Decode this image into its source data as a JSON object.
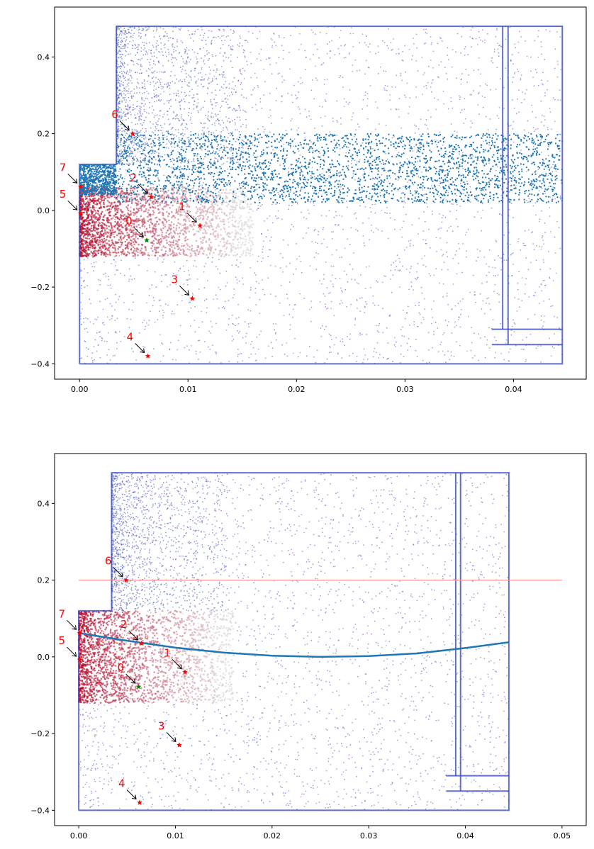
{
  "chart_data": [
    {
      "type": "scatter",
      "title": "",
      "xlabel": "",
      "ylabel": "",
      "xlim": [
        -0.0023,
        0.0467
      ],
      "ylim": [
        -0.44,
        0.53
      ],
      "xticks": [
        0.0,
        0.01,
        0.02,
        0.03,
        0.04
      ],
      "xtick_labels": [
        "0.00",
        "0.01",
        "0.02",
        "0.03",
        "0.04"
      ],
      "yticks": [
        -0.4,
        -0.2,
        0.0,
        0.2,
        0.4
      ],
      "ytick_labels": [
        "−0.4",
        "−0.2",
        "0.0",
        "0.2",
        "0.4"
      ],
      "grid": false,
      "colormap": "coolwarm",
      "domain_outline": {
        "xmin": 0.0,
        "xmax": 0.0445,
        "ymin": -0.4,
        "ymax": 0.48,
        "step_x": 0.0034,
        "step_y": 0.12,
        "vertical_lines_x": [
          0.039,
          0.0395
        ],
        "bottom_bands_y": [
          -0.31,
          -0.35
        ]
      },
      "blue_band": {
        "segments": [
          {
            "x": [
              0.0,
              0.0034
            ],
            "y": [
              0.04,
              0.12
            ]
          },
          {
            "x": [
              0.0034,
              0.0445
            ],
            "y": [
              0.02,
              0.2
            ]
          }
        ],
        "color": "#1f77b4"
      },
      "red_region": {
        "x": [
          0.0,
          0.016
        ],
        "y": [
          -0.12,
          0.06
        ]
      },
      "markers": [
        {
          "label": "1",
          "x": 0.0111,
          "y": -0.04,
          "color": "#ff0000"
        },
        {
          "label": "2",
          "x": 0.0066,
          "y": 0.035,
          "color": "#ff0000"
        },
        {
          "label": "3",
          "x": 0.0104,
          "y": -0.23,
          "color": "#ff0000"
        },
        {
          "label": "4",
          "x": 0.0063,
          "y": -0.38,
          "color": "#ff0000"
        },
        {
          "label": "5",
          "x": 0.0001,
          "y": -0.008,
          "color": "#ff0000"
        },
        {
          "label": "6",
          "x": 0.0049,
          "y": 0.2,
          "color": "#ff0000"
        },
        {
          "label": "7",
          "x": 0.0001,
          "y": 0.062,
          "color": "#ff0000"
        },
        {
          "label": "0",
          "x": 0.0062,
          "y": -0.078,
          "color": "#008000"
        }
      ]
    },
    {
      "type": "scatter",
      "title": "",
      "xlabel": "",
      "ylabel": "",
      "xlim": [
        -0.0025,
        0.0525
      ],
      "ylim": [
        -0.44,
        0.53
      ],
      "xticks": [
        0.0,
        0.01,
        0.02,
        0.03,
        0.04,
        0.05
      ],
      "xtick_labels": [
        "0.00",
        "0.01",
        "0.02",
        "0.03",
        "0.04",
        "0.05"
      ],
      "yticks": [
        -0.4,
        -0.2,
        0.0,
        0.2,
        0.4
      ],
      "ytick_labels": [
        "−0.4",
        "−0.2",
        "0.0",
        "0.2",
        "0.4"
      ],
      "grid": false,
      "colormap": "coolwarm",
      "domain_outline": {
        "xmin": 0.0,
        "xmax": 0.0445,
        "ymin": -0.4,
        "ymax": 0.48,
        "step_x": 0.0034,
        "step_y": 0.12,
        "vertical_lines_x": [
          0.039,
          0.0395
        ],
        "bottom_bands_y": [
          -0.31,
          -0.35
        ]
      },
      "horizontal_line": {
        "y": 0.2,
        "x": [
          0.0,
          0.05
        ],
        "color": "#ff9999"
      },
      "curve": {
        "x": [
          0.0,
          0.005,
          0.01,
          0.015,
          0.02,
          0.025,
          0.03,
          0.035,
          0.04,
          0.0445
        ],
        "y": [
          0.062,
          0.042,
          0.024,
          0.011,
          0.003,
          0.0,
          0.002,
          0.009,
          0.023,
          0.038
        ],
        "color": "#1f77b4"
      },
      "red_region": {
        "x": [
          0.0,
          0.016
        ],
        "y": [
          -0.12,
          0.12
        ]
      },
      "markers": [
        {
          "label": "1",
          "x": 0.011,
          "y": -0.04,
          "color": "#ff0000"
        },
        {
          "label": "2",
          "x": 0.0065,
          "y": 0.035,
          "color": "#ff0000"
        },
        {
          "label": "3",
          "x": 0.0104,
          "y": -0.23,
          "color": "#ff0000"
        },
        {
          "label": "4",
          "x": 0.0063,
          "y": -0.38,
          "color": "#ff0000"
        },
        {
          "label": "5",
          "x": 0.0001,
          "y": -0.008,
          "color": "#ff0000"
        },
        {
          "label": "6",
          "x": 0.0049,
          "y": 0.2,
          "color": "#ff0000"
        },
        {
          "label": "7",
          "x": 0.0001,
          "y": 0.062,
          "color": "#ff0000"
        },
        {
          "label": "0",
          "x": 0.0062,
          "y": -0.078,
          "color": "#008000"
        }
      ]
    }
  ]
}
